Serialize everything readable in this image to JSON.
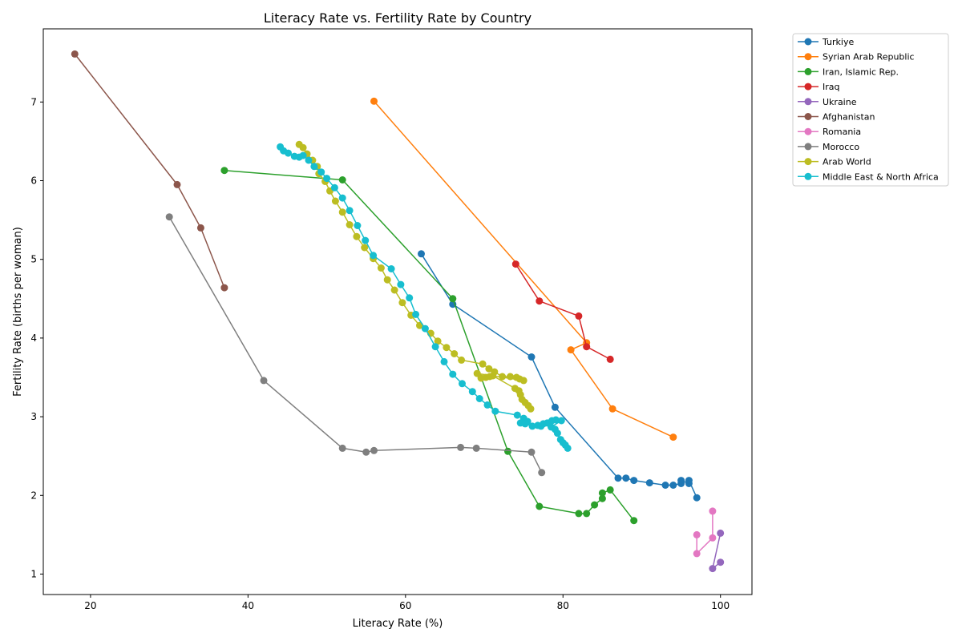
{
  "chart_data": {
    "type": "line",
    "title": "Literacy Rate vs. Fertility Rate by Country",
    "xlabel": "Literacy Rate (%)",
    "ylabel": "Fertility Rate (births per woman)",
    "xlim": [
      14,
      104
    ],
    "ylim": [
      0.74,
      7.93
    ],
    "xticks": [
      20,
      40,
      60,
      80,
      100
    ],
    "yticks": [
      1,
      2,
      3,
      4,
      5,
      6,
      7
    ],
    "grid": false,
    "legend_position": "outside-right",
    "series": [
      {
        "name": "Turkiye",
        "color": "#1f77b4",
        "points": [
          [
            62,
            5.07
          ],
          [
            66,
            4.43
          ],
          [
            76,
            3.76
          ],
          [
            79,
            3.12
          ],
          [
            87,
            2.22
          ],
          [
            88,
            2.22
          ],
          [
            89,
            2.19
          ],
          [
            91,
            2.16
          ],
          [
            93,
            2.13
          ],
          [
            94,
            2.13
          ],
          [
            95,
            2.15
          ],
          [
            95,
            2.19
          ],
          [
            96,
            2.15
          ],
          [
            96,
            2.19
          ],
          [
            97,
            1.97
          ]
        ]
      },
      {
        "name": "Syrian Arab Republic",
        "color": "#ff7f0e",
        "points": [
          [
            56,
            7.01
          ],
          [
            83,
            3.94
          ],
          [
            81,
            3.85
          ],
          [
            86.3,
            3.1
          ],
          [
            94,
            2.74
          ]
        ]
      },
      {
        "name": "Iran, Islamic Rep.",
        "color": "#2ca02c",
        "points": [
          [
            37,
            6.13
          ],
          [
            52,
            6.01
          ],
          [
            66,
            4.5
          ],
          [
            73,
            2.56
          ],
          [
            77,
            1.86
          ],
          [
            82,
            1.77
          ],
          [
            83,
            1.77
          ],
          [
            84,
            1.88
          ],
          [
            85,
            1.96
          ],
          [
            85,
            2.03
          ],
          [
            86,
            2.07
          ],
          [
            89,
            1.68
          ]
        ]
      },
      {
        "name": "Iraq",
        "color": "#d62728",
        "points": [
          [
            74,
            4.94
          ],
          [
            77,
            4.47
          ],
          [
            82,
            4.28
          ],
          [
            83,
            3.89
          ],
          [
            86,
            3.73
          ]
        ]
      },
      {
        "name": "Ukraine",
        "color": "#9467bd",
        "points": [
          [
            100,
            1.52
          ],
          [
            99,
            1.07
          ],
          [
            100,
            1.15
          ]
        ]
      },
      {
        "name": "Afghanistan",
        "color": "#8c564b",
        "points": [
          [
            18,
            7.61
          ],
          [
            31,
            5.95
          ],
          [
            34,
            5.4
          ],
          [
            37,
            4.64
          ]
        ]
      },
      {
        "name": "Romania",
        "color": "#e377c2",
        "points": [
          [
            97,
            1.5
          ],
          [
            97,
            1.26
          ],
          [
            99,
            1.46
          ],
          [
            99,
            1.8
          ]
        ]
      },
      {
        "name": "Morocco",
        "color": "#7f7f7f",
        "points": [
          [
            30,
            5.54
          ],
          [
            42,
            3.46
          ],
          [
            52,
            2.6
          ],
          [
            55,
            2.55
          ],
          [
            56,
            2.57
          ],
          [
            67,
            2.61
          ],
          [
            69,
            2.6
          ],
          [
            76,
            2.55
          ],
          [
            77.3,
            2.29
          ]
        ]
      },
      {
        "name": "Arab World",
        "color": "#bcbd22",
        "points": [
          [
            46.5,
            6.46
          ],
          [
            47,
            6.42
          ],
          [
            47.5,
            6.34
          ],
          [
            48.2,
            6.26
          ],
          [
            48.8,
            6.18
          ],
          [
            49,
            6.09
          ],
          [
            49.8,
            5.99
          ],
          [
            50.4,
            5.87
          ],
          [
            51.1,
            5.74
          ],
          [
            52,
            5.6
          ],
          [
            52.9,
            5.44
          ],
          [
            53.8,
            5.29
          ],
          [
            54.8,
            5.15
          ],
          [
            55.9,
            5.01
          ],
          [
            56.9,
            4.89
          ],
          [
            57.7,
            4.74
          ],
          [
            58.6,
            4.61
          ],
          [
            59.6,
            4.45
          ],
          [
            60.7,
            4.29
          ],
          [
            61.8,
            4.16
          ],
          [
            63.2,
            4.06
          ],
          [
            64.1,
            3.96
          ],
          [
            65.2,
            3.88
          ],
          [
            66.2,
            3.8
          ],
          [
            67.1,
            3.72
          ],
          [
            69.8,
            3.67
          ],
          [
            70.6,
            3.61
          ],
          [
            71.3,
            3.57
          ],
          [
            72.3,
            3.51
          ],
          [
            73.3,
            3.51
          ],
          [
            74.1,
            3.5
          ],
          [
            74.5,
            3.48
          ],
          [
            75,
            3.46
          ],
          [
            69.1,
            3.55
          ],
          [
            69.6,
            3.49
          ],
          [
            70.2,
            3.5
          ],
          [
            70.7,
            3.51
          ],
          [
            71.1,
            3.52
          ],
          [
            73.9,
            3.36
          ],
          [
            74.4,
            3.33
          ],
          [
            74.6,
            3.28
          ],
          [
            74.8,
            3.22
          ],
          [
            75.2,
            3.18
          ],
          [
            75.6,
            3.14
          ],
          [
            75.9,
            3.1
          ]
        ]
      },
      {
        "name": "Middle East & North Africa",
        "color": "#17becf",
        "points": [
          [
            44.1,
            6.43
          ],
          [
            44.5,
            6.38
          ],
          [
            45.1,
            6.35
          ],
          [
            45.9,
            6.31
          ],
          [
            46.5,
            6.3
          ],
          [
            47,
            6.32
          ],
          [
            47.7,
            6.26
          ],
          [
            48.4,
            6.18
          ],
          [
            49.3,
            6.11
          ],
          [
            50,
            6.03
          ],
          [
            51,
            5.91
          ],
          [
            52,
            5.78
          ],
          [
            52.9,
            5.62
          ],
          [
            53.9,
            5.43
          ],
          [
            54.9,
            5.24
          ],
          [
            55.9,
            5.05
          ],
          [
            58.2,
            4.88
          ],
          [
            59.4,
            4.68
          ],
          [
            60.5,
            4.51
          ],
          [
            61.3,
            4.3
          ],
          [
            62.5,
            4.12
          ],
          [
            63.8,
            3.89
          ],
          [
            64.9,
            3.7
          ],
          [
            66,
            3.54
          ],
          [
            67.2,
            3.42
          ],
          [
            68.5,
            3.32
          ],
          [
            69.4,
            3.23
          ],
          [
            70.4,
            3.15
          ],
          [
            71.4,
            3.07
          ],
          [
            74.2,
            3.02
          ],
          [
            75,
            2.98
          ],
          [
            75.5,
            2.94
          ],
          [
            74.6,
            2.92
          ],
          [
            75.2,
            2.91
          ],
          [
            76.1,
            2.88
          ],
          [
            76.8,
            2.89
          ],
          [
            77.2,
            2.88
          ],
          [
            77.5,
            2.91
          ],
          [
            78,
            2.92
          ],
          [
            78.6,
            2.95
          ],
          [
            79.1,
            2.96
          ],
          [
            79.8,
            2.95
          ],
          [
            78.5,
            2.87
          ],
          [
            79,
            2.84
          ],
          [
            79.3,
            2.79
          ],
          [
            79.7,
            2.71
          ],
          [
            80,
            2.67
          ],
          [
            80.3,
            2.64
          ],
          [
            80.6,
            2.6
          ]
        ]
      }
    ]
  }
}
